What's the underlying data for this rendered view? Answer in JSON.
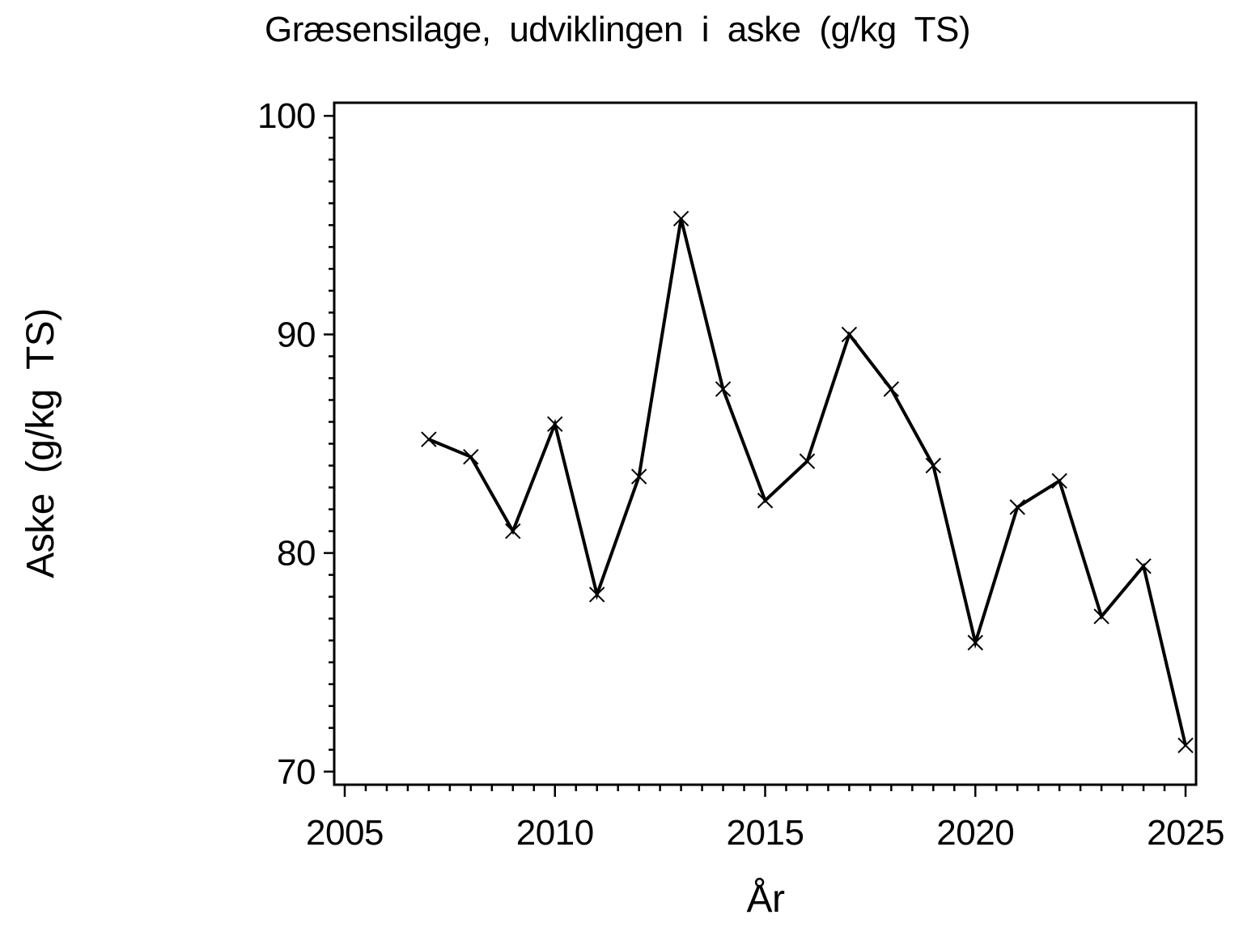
{
  "chart_data": {
    "type": "line",
    "title": "Græsensilage, udviklingen i aske (g/kg TS)",
    "xlabel": "År",
    "ylabel": "Aske (g/kg TS)",
    "x": [
      2007,
      2008,
      2009,
      2010,
      2011,
      2012,
      2013,
      2014,
      2015,
      2016,
      2017,
      2018,
      2019,
      2020,
      2021,
      2022,
      2023,
      2024,
      2025
    ],
    "values": [
      85.2,
      84.4,
      81.0,
      85.9,
      78.1,
      83.5,
      95.3,
      87.5,
      82.4,
      84.2,
      90.0,
      87.5,
      84.0,
      75.9,
      82.1,
      83.3,
      77.1,
      79.4,
      71.2
    ],
    "series_name": "Aske",
    "xlim": [
      2004.75,
      2025.25
    ],
    "ylim": [
      69.4,
      100.6
    ],
    "x_major_ticks": [
      2005,
      2010,
      2015,
      2020,
      2025
    ],
    "x_major_tick_labels": [
      "2005",
      "2010",
      "2015",
      "2020",
      "2025"
    ],
    "x_minor_step": 0.5,
    "y_major_ticks": [
      70,
      80,
      90,
      100
    ],
    "y_major_tick_labels": [
      "70",
      "80",
      "90",
      "100"
    ],
    "y_minor_step": 1,
    "marker": "x-cross",
    "line_color": "#000000",
    "marker_color": "#000000",
    "axis_color": "#000000",
    "background_color": "#ffffff",
    "grid": false,
    "legend": null
  }
}
